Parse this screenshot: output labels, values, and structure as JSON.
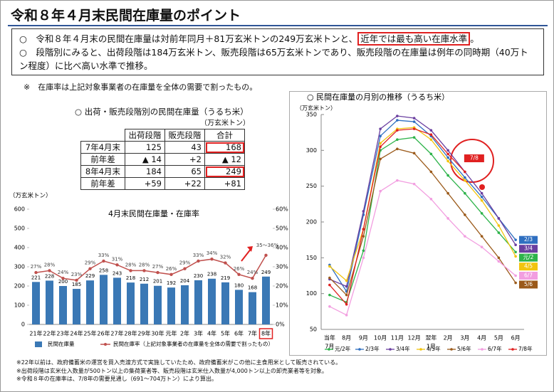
{
  "header": {
    "title": "令和８年４月末民間在庫量のポイント"
  },
  "summary": {
    "line1_before": "○　令和８年４月末の民間在庫量は対前年同月＋81万玄米トンの249万玄米トンと、",
    "line1_highlight": "近年では最も高い在庫水準",
    "line1_after": "。",
    "line2": "○　段階別にみると、出荷段階は184万玄米トン、販売段階は65万玄米トンであり、販売段階の在庫量は例年の同時期（40万トン程度）に比べ高い水準で推移。"
  },
  "note": "※　在庫率は上記対象事業者の在庫量を全体の需要で割ったもの。",
  "table": {
    "title": "○ 出荷・販売段階別の民間在庫量（うるち米）",
    "unit": "（万玄米トン）",
    "header": [
      "出荷段階",
      "販売段階",
      "合計"
    ],
    "rows": [
      [
        "7年4月末",
        125,
        43,
        168
      ],
      [
        "前年差",
        "▲ 14",
        "+2",
        "▲ 12"
      ],
      [
        "8年4月末",
        184,
        65,
        249
      ],
      [
        "前年差",
        "+59",
        "+22",
        "+81"
      ]
    ]
  },
  "chart_data": [
    {
      "type": "bar",
      "title": "4月末民間在庫量・在庫率",
      "y_label": "（万玄米トン）",
      "categories": [
        "21年",
        "22年",
        "23年",
        "24年",
        "25年",
        "26年",
        "27年",
        "28年",
        "29年",
        "30年",
        "元年",
        "2年",
        "3年",
        "4年",
        "5年",
        "6年",
        "7年",
        "8年"
      ],
      "series": [
        {
          "name": "民間在庫量",
          "color": "#3a78b5",
          "values": [
            221,
            228,
            200,
            185,
            229,
            258,
            243,
            218,
            212,
            201,
            192,
            204,
            230,
            238,
            219,
            180,
            168,
            249
          ]
        },
        {
          "name": "民間在庫率（上記対象事業者の在庫量を全体の需要で割ったもの）",
          "color": "#c0504d",
          "axis": "y2",
          "values": [
            27,
            28,
            24,
            23,
            29,
            33,
            31,
            28,
            28,
            27,
            26,
            29,
            33,
            34,
            32,
            26,
            24,
            36
          ],
          "value_labels": [
            "27%",
            "28%",
            "24%",
            "23%",
            "29%",
            "33%",
            "31%",
            "28%",
            "28%",
            "27%",
            "26%",
            "29%",
            "33%",
            "34%",
            "32%",
            "26%",
            "24%",
            "35～36%"
          ]
        }
      ],
      "ylim": [
        0,
        600
      ],
      "yticks": [
        0,
        100,
        200,
        300,
        400,
        500,
        600
      ],
      "y2lim": [
        0,
        60
      ],
      "y2ticks": [
        {
          "value": 0,
          "label": "0%"
        },
        {
          "value": 10,
          "label": "10%"
        },
        {
          "value": 20,
          "label": "20%"
        },
        {
          "value": 30,
          "label": "30%"
        },
        {
          "value": 40,
          "label": "40%"
        },
        {
          "value": 50,
          "label": "50%"
        },
        {
          "value": 60,
          "label": "60%"
        }
      ]
    },
    {
      "type": "line",
      "title": "○ 民間在庫量の月別の推移（うるち米）",
      "y_label": "（万玄米トン）",
      "categories": [
        "7月",
        "8月",
        "9月",
        "10月",
        "11月",
        "12月",
        "1月",
        "2月",
        "3月",
        "4月",
        "5月",
        "6月"
      ],
      "period_labels": [
        "当年",
        "翌年"
      ],
      "series": [
        {
          "name": "元/2年",
          "end_label": "元/2",
          "color": "#2db34a",
          "values": [
            98,
            88,
            160,
            300,
            315,
            318,
            295,
            265,
            240,
            212,
            185,
            158
          ]
        },
        {
          "name": "2/3年",
          "end_label": "2/3",
          "color": "#2f6fc0",
          "values": [
            140,
            103,
            210,
            320,
            342,
            340,
            320,
            290,
            262,
            235,
            205,
            175
          ]
        },
        {
          "name": "3/4年",
          "end_label": "3/4",
          "color": "#6a3fa0",
          "values": [
            120,
            110,
            215,
            330,
            348,
            345,
            328,
            300,
            270,
            240,
            205,
            168
          ]
        },
        {
          "name": "4/5年",
          "end_label": "4/5",
          "color": "#f2c40f",
          "values": [
            138,
            118,
            190,
            310,
            330,
            332,
            315,
            285,
            258,
            230,
            195,
            152
          ]
        },
        {
          "name": "5/6年",
          "end_label": "5/6",
          "color": "#9b5a1a",
          "values": [
            122,
            98,
            180,
            288,
            302,
            296,
            270,
            240,
            210,
            180,
            150,
            115
          ]
        },
        {
          "name": "6/7年",
          "end_label": "6/7",
          "color": "#f29ee0",
          "values": [
            82,
            70,
            150,
            243,
            258,
            253,
            232,
            205,
            180,
            165,
            145,
            125
          ]
        },
        {
          "name": "7/8年",
          "end_label": "7/8",
          "color": "#e02020",
          "values": [
            112,
            85,
            190,
            305,
            328,
            330,
            322,
            295,
            270,
            null,
            null,
            null
          ]
        }
      ],
      "ylim": [
        50,
        350
      ],
      "yticks": [
        50,
        100,
        150,
        200,
        250,
        300,
        350
      ]
    }
  ],
  "footnotes": [
    "※22年以前は、政府備蓄米の運営を買入売渡方式で実施していたため、政府備蓄米がこの他に主食用米として販売されている。",
    "※出荷段階は玄米仕入数量が500トン以上の集荷業者等、販売段階は玄米仕入数量が4,000トン以上の卸売業者等を対象。",
    "※令和８年の在庫率は、7/8年の需要見通し（691～704万トン）により算出。"
  ]
}
